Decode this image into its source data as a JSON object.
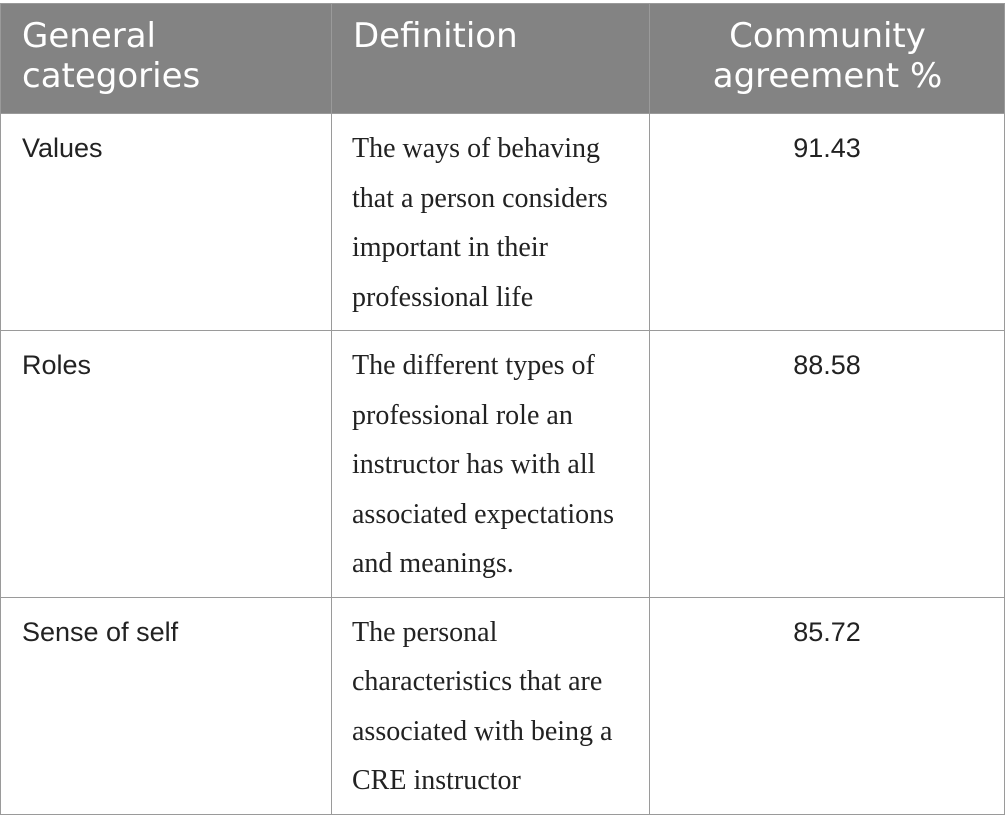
{
  "table": {
    "headers": [
      "General categories",
      "Definition",
      "Community agreement %"
    ],
    "rows": [
      {
        "category": "Values",
        "definition": "The ways of behaving that a person considers important in their professional life",
        "agreement": "91.43"
      },
      {
        "category": "Roles",
        "definition": "The different types of professional role an instructor has with all associated expectations and meanings.",
        "agreement": "88.58"
      },
      {
        "category": "Sense of self",
        "definition": "The personal characteristics that are associated with being a CRE instructor",
        "agreement": "85.72"
      }
    ]
  }
}
